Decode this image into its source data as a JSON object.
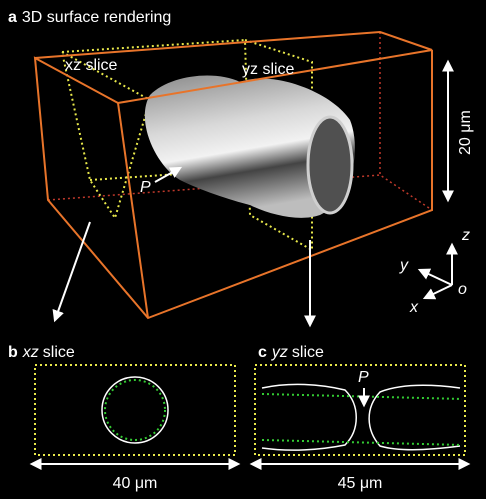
{
  "panel_a": {
    "label": "a",
    "title": "3D surface rendering",
    "xz_label": "xz slice",
    "yz_label": "yz slice",
    "scale": "20 μm",
    "pointer": "P",
    "axes": {
      "z": "z",
      "y": "y",
      "x": "x",
      "origin": "o"
    }
  },
  "panel_b": {
    "label": "b",
    "title_italic": "xz",
    "title_rest": "slice",
    "scale": "40 μm"
  },
  "panel_c": {
    "label": "c",
    "title_italic": "yz",
    "title_rest": "slice",
    "pointer": "P",
    "scale": "45 μm"
  }
}
